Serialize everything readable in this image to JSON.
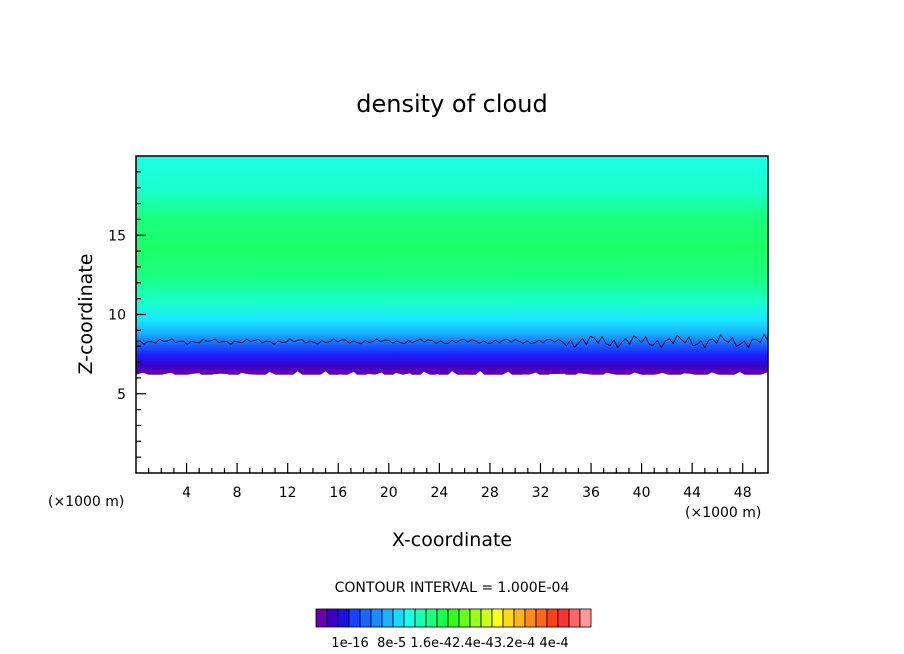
{
  "chart_data": {
    "type": "heatmap",
    "title": "density of cloud",
    "xlabel": "X-coordinate",
    "ylabel": "Z-coordinate",
    "x_unit_label_left": "(×1000 m)",
    "x_unit_label_right": "(×1000 m)",
    "xlim": [
      0,
      50
    ],
    "ylim": [
      0,
      20
    ],
    "x_ticks": [
      4,
      8,
      12,
      16,
      20,
      24,
      28,
      32,
      36,
      40,
      44,
      48
    ],
    "y_ticks": [
      5,
      10,
      15
    ],
    "cloud_profile": {
      "base_z": 6.2,
      "contour_z": 8.3,
      "peak_z": 14,
      "top_z": 20
    },
    "legend": {
      "title": "CONTOUR INTERVAL = 1.000E-04",
      "labels": [
        "1e-16",
        "8e-5",
        "1.6e-4",
        "2.4e-4",
        "3.2e-4",
        "4e-4"
      ],
      "label_text": "1e-16  8e-5 1.6e-42.4e-43.2e-4 4e-4",
      "colors": [
        "#6a00a8",
        "#3a00c8",
        "#1a10e0",
        "#1a40ff",
        "#1a66ff",
        "#1a8cff",
        "#1ab3ff",
        "#1ad9ff",
        "#1affe6",
        "#1affb3",
        "#1aff80",
        "#1aff4d",
        "#33ff1a",
        "#66ff1a",
        "#99ff1a",
        "#ccff1a",
        "#ffff1a",
        "#ffd91a",
        "#ffb31a",
        "#ff8c1a",
        "#ff661a",
        "#ff401a",
        "#ff3333",
        "#ff6666",
        "#ff9999"
      ]
    }
  }
}
